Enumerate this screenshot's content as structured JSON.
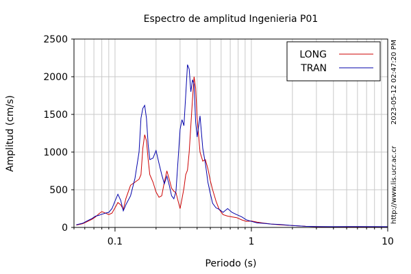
{
  "chart_data": {
    "type": "line",
    "title": "Espectro de amplitud Ingenieria P01",
    "xlabel": "Periodo (s)",
    "ylabel": "Amplitud (cm/s)",
    "xscale": "log",
    "xlim": [
      0.05,
      10
    ],
    "ylim": [
      0,
      2500
    ],
    "yticks": [
      0,
      500,
      1000,
      1500,
      2000,
      2500
    ],
    "xticks": [
      0.1,
      1,
      10
    ],
    "xtick_labels": [
      "0.1",
      "1",
      "10"
    ],
    "grid": true,
    "legend_position": "top-right",
    "timestamp": "2023-05-12 02:47:20 PM",
    "url": "http://www.lis.ucr.ac.cr",
    "series": [
      {
        "name": "LONG",
        "color": "#cc0000",
        "points": [
          [
            0.052,
            30
          ],
          [
            0.058,
            50
          ],
          [
            0.063,
            80
          ],
          [
            0.068,
            110
          ],
          [
            0.072,
            140
          ],
          [
            0.076,
            180
          ],
          [
            0.08,
            210
          ],
          [
            0.085,
            190
          ],
          [
            0.09,
            170
          ],
          [
            0.095,
            190
          ],
          [
            0.1,
            260
          ],
          [
            0.105,
            330
          ],
          [
            0.11,
            300
          ],
          [
            0.115,
            240
          ],
          [
            0.12,
            380
          ],
          [
            0.13,
            560
          ],
          [
            0.14,
            600
          ],
          [
            0.15,
            640
          ],
          [
            0.155,
            700
          ],
          [
            0.16,
            1050
          ],
          [
            0.165,
            1230
          ],
          [
            0.17,
            1150
          ],
          [
            0.175,
            900
          ],
          [
            0.18,
            700
          ],
          [
            0.19,
            600
          ],
          [
            0.2,
            470
          ],
          [
            0.21,
            400
          ],
          [
            0.22,
            420
          ],
          [
            0.23,
            600
          ],
          [
            0.24,
            750
          ],
          [
            0.25,
            640
          ],
          [
            0.26,
            520
          ],
          [
            0.27,
            480
          ],
          [
            0.28,
            460
          ],
          [
            0.29,
            350
          ],
          [
            0.3,
            250
          ],
          [
            0.31,
            380
          ],
          [
            0.32,
            520
          ],
          [
            0.33,
            700
          ],
          [
            0.34,
            760
          ],
          [
            0.35,
            1000
          ],
          [
            0.36,
            1350
          ],
          [
            0.37,
            1700
          ],
          [
            0.38,
            2000
          ],
          [
            0.39,
            1850
          ],
          [
            0.4,
            1450
          ],
          [
            0.42,
            1000
          ],
          [
            0.44,
            880
          ],
          [
            0.46,
            900
          ],
          [
            0.48,
            780
          ],
          [
            0.5,
            620
          ],
          [
            0.52,
            500
          ],
          [
            0.55,
            350
          ],
          [
            0.58,
            240
          ],
          [
            0.62,
            170
          ],
          [
            0.67,
            150
          ],
          [
            0.72,
            140
          ],
          [
            0.78,
            130
          ],
          [
            0.85,
            100
          ],
          [
            0.92,
            80
          ],
          [
            1.0,
            85
          ],
          [
            1.1,
            70
          ],
          [
            1.2,
            60
          ],
          [
            1.4,
            45
          ],
          [
            1.6,
            35
          ],
          [
            2.0,
            25
          ],
          [
            2.5,
            15
          ],
          [
            3.0,
            10
          ],
          [
            4.0,
            7
          ],
          [
            6.0,
            5
          ],
          [
            10.0,
            4
          ]
        ]
      },
      {
        "name": "TRAN",
        "color": "#0000aa",
        "points": [
          [
            0.052,
            35
          ],
          [
            0.058,
            55
          ],
          [
            0.063,
            90
          ],
          [
            0.068,
            120
          ],
          [
            0.072,
            150
          ],
          [
            0.076,
            160
          ],
          [
            0.08,
            175
          ],
          [
            0.085,
            190
          ],
          [
            0.09,
            200
          ],
          [
            0.095,
            250
          ],
          [
            0.1,
            350
          ],
          [
            0.105,
            440
          ],
          [
            0.11,
            360
          ],
          [
            0.115,
            220
          ],
          [
            0.12,
            300
          ],
          [
            0.13,
            420
          ],
          [
            0.14,
            650
          ],
          [
            0.15,
            1000
          ],
          [
            0.155,
            1450
          ],
          [
            0.16,
            1580
          ],
          [
            0.165,
            1620
          ],
          [
            0.17,
            1450
          ],
          [
            0.175,
            1100
          ],
          [
            0.18,
            900
          ],
          [
            0.19,
            920
          ],
          [
            0.2,
            1020
          ],
          [
            0.21,
            850
          ],
          [
            0.22,
            700
          ],
          [
            0.23,
            580
          ],
          [
            0.24,
            680
          ],
          [
            0.25,
            560
          ],
          [
            0.26,
            420
          ],
          [
            0.27,
            380
          ],
          [
            0.28,
            480
          ],
          [
            0.29,
            900
          ],
          [
            0.3,
            1300
          ],
          [
            0.31,
            1430
          ],
          [
            0.32,
            1350
          ],
          [
            0.33,
            1750
          ],
          [
            0.34,
            2160
          ],
          [
            0.35,
            2100
          ],
          [
            0.36,
            1800
          ],
          [
            0.37,
            1960
          ],
          [
            0.38,
            1900
          ],
          [
            0.39,
            1400
          ],
          [
            0.4,
            1200
          ],
          [
            0.42,
            1480
          ],
          [
            0.44,
            1050
          ],
          [
            0.46,
            850
          ],
          [
            0.48,
            600
          ],
          [
            0.5,
            450
          ],
          [
            0.52,
            320
          ],
          [
            0.55,
            260
          ],
          [
            0.58,
            240
          ],
          [
            0.62,
            200
          ],
          [
            0.67,
            250
          ],
          [
            0.72,
            200
          ],
          [
            0.78,
            170
          ],
          [
            0.85,
            140
          ],
          [
            0.92,
            100
          ],
          [
            1.0,
            80
          ],
          [
            1.1,
            60
          ],
          [
            1.2,
            55
          ],
          [
            1.4,
            45
          ],
          [
            1.6,
            40
          ],
          [
            2.0,
            25
          ],
          [
            2.5,
            15
          ],
          [
            3.0,
            12
          ],
          [
            4.0,
            10
          ],
          [
            6.0,
            12
          ],
          [
            10.0,
            10
          ]
        ]
      }
    ]
  }
}
